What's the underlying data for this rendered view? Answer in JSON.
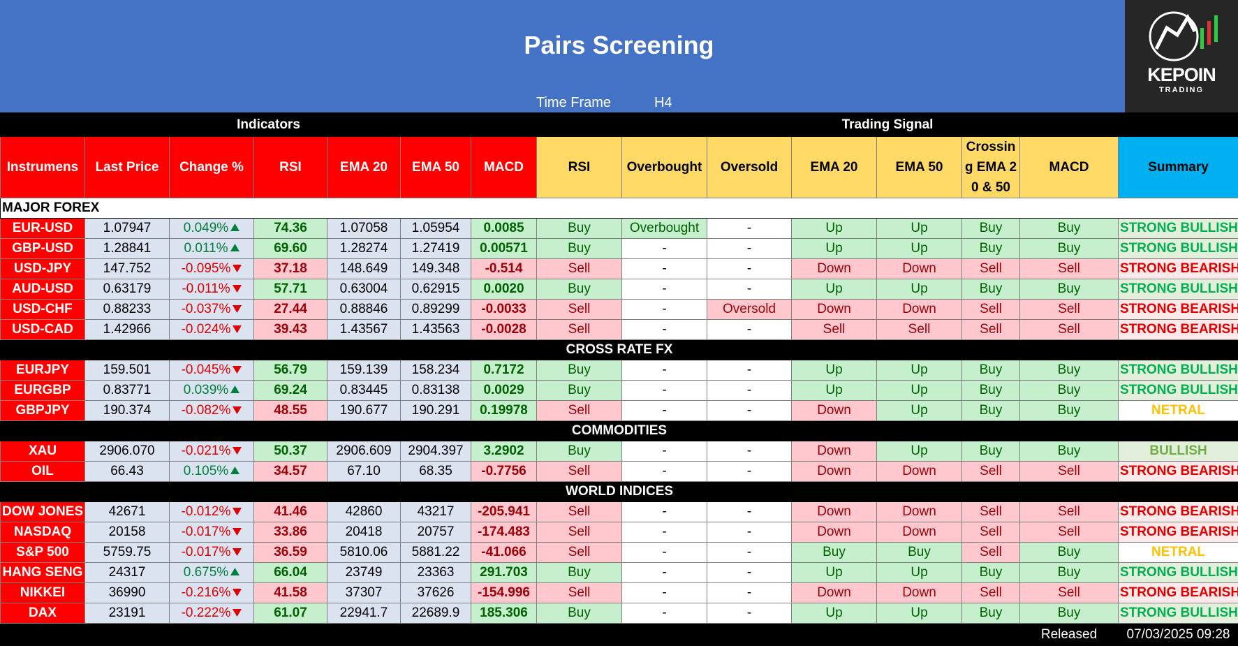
{
  "header": {
    "title": "Pairs Screening",
    "time_frame_label": "Time Frame",
    "time_frame": "H4"
  },
  "logo": {
    "name": "KEPOIN",
    "tagline": "TRADING"
  },
  "groups": [
    "Indicators",
    "Trading Signal"
  ],
  "columns": [
    "Instrumens",
    "Last Price",
    "Change %",
    "RSI",
    "EMA 20",
    "EMA 50",
    "MACD",
    "RSI",
    "Overbought",
    "Oversold",
    "EMA 20",
    "EMA 50",
    "Crossing EMA 20 & 50",
    "MACD",
    "Summary"
  ],
  "sections": [
    {
      "title": "MAJOR FOREX",
      "rows": [
        [
          "EUR-USD",
          "1.07947",
          "0.049%",
          "74.36",
          "1.07058",
          "1.05954",
          "0.0085",
          "Buy",
          "Overbought",
          "-",
          "Up",
          "Up",
          "Buy",
          "Buy",
          "STRONG BULLISH"
        ],
        [
          "GBP-USD",
          "1.28841",
          "0.011%",
          "69.60",
          "1.28274",
          "1.27419",
          "0.00571",
          "Buy",
          "-",
          "-",
          "Up",
          "Up",
          "Buy",
          "Buy",
          "STRONG BULLISH"
        ],
        [
          "USD-JPY",
          "147.752",
          "-0.095%",
          "37.18",
          "148.649",
          "149.348",
          "-0.514",
          "Sell",
          "-",
          "-",
          "Down",
          "Down",
          "Sell",
          "Sell",
          "STRONG BEARISH"
        ],
        [
          "AUD-USD",
          "0.63179",
          "-0.011%",
          "57.71",
          "0.63004",
          "0.62915",
          "0.0020",
          "Buy",
          "-",
          "-",
          "Up",
          "Up",
          "Buy",
          "Buy",
          "STRONG BULLISH"
        ],
        [
          "USD-CHF",
          "0.88233",
          "-0.037%",
          "27.44",
          "0.88846",
          "0.89299",
          "-0.0033",
          "Sell",
          "-",
          "Oversold",
          "Down",
          "Down",
          "Sell",
          "Sell",
          "STRONG BEARISH"
        ],
        [
          "USD-CAD",
          "1.42966",
          "-0.024%",
          "39.43",
          "1.43567",
          "1.43563",
          "-0.0028",
          "Sell",
          "-",
          "-",
          "Sell",
          "Sell",
          "Sell",
          "Sell",
          "STRONG BEARISH"
        ]
      ]
    },
    {
      "title": "CROSS RATE FX",
      "rows": [
        [
          "EURJPY",
          "159.501",
          "-0.045%",
          "56.79",
          "159.139",
          "158.234",
          "0.7172",
          "Buy",
          "-",
          "-",
          "Up",
          "Up",
          "Buy",
          "Buy",
          "STRONG BULLISH"
        ],
        [
          "EURGBP",
          "0.83771",
          "0.039%",
          "69.24",
          "0.83445",
          "0.83138",
          "0.0029",
          "Buy",
          "-",
          "-",
          "Up",
          "Up",
          "Buy",
          "Buy",
          "STRONG BULLISH"
        ],
        [
          "GBPJPY",
          "190.374",
          "-0.082%",
          "48.55",
          "190.677",
          "190.291",
          "0.19978",
          "Sell",
          "-",
          "-",
          "Down",
          "Up",
          "Buy",
          "Buy",
          "NETRAL"
        ]
      ]
    },
    {
      "title": "COMMODITIES",
      "rows": [
        [
          "XAU",
          "2906.070",
          "-0.021%",
          "50.37",
          "2906.609",
          "2904.397",
          "3.2902",
          "Buy",
          "-",
          "-",
          "Down",
          "Up",
          "Buy",
          "Buy",
          "BULLISH"
        ],
        [
          "OIL",
          "66.43",
          "0.105%",
          "34.57",
          "67.10",
          "68.35",
          "-0.7756",
          "Sell",
          "-",
          "-",
          "Down",
          "Down",
          "Sell",
          "Sell",
          "STRONG BEARISH"
        ]
      ]
    },
    {
      "title": "WORLD INDICES",
      "rows": [
        [
          "DOW JONES",
          "42671",
          "-0.012%",
          "41.46",
          "42860",
          "43217",
          "-205.941",
          "Sell",
          "-",
          "-",
          "Down",
          "Down",
          "Sell",
          "Sell",
          "STRONG BEARISH"
        ],
        [
          "NASDAQ",
          "20158",
          "-0.017%",
          "33.86",
          "20418",
          "20757",
          "-174.483",
          "Sell",
          "-",
          "-",
          "Down",
          "Down",
          "Sell",
          "Sell",
          "STRONG BEARISH"
        ],
        [
          "S&P 500",
          "5759.75",
          "-0.017%",
          "36.59",
          "5810.06",
          "5881.22",
          "-41.066",
          "Sell",
          "-",
          "-",
          "Buy",
          "Buy",
          "Sell",
          "Buy",
          "NETRAL"
        ],
        [
          "HANG SENG",
          "24317",
          "0.675%",
          "66.04",
          "23749",
          "23363",
          "291.703",
          "Buy",
          "-",
          "-",
          "Up",
          "Up",
          "Buy",
          "Buy",
          "STRONG BULLISH"
        ],
        [
          "NIKKEI",
          "36990",
          "-0.216%",
          "41.58",
          "37307",
          "37626",
          "-154.996",
          "Sell",
          "-",
          "-",
          "Down",
          "Down",
          "Sell",
          "Sell",
          "STRONG BEARISH"
        ],
        [
          "DAX",
          "23191",
          "-0.222%",
          "61.07",
          "22941.7",
          "22689.9",
          "185.306",
          "Buy",
          "-",
          "-",
          "Up",
          "Up",
          "Buy",
          "Buy",
          "STRONG BULLISH"
        ]
      ]
    }
  ],
  "footer": {
    "label": "Released",
    "timestamp": "07/03/2025 09:28"
  }
}
